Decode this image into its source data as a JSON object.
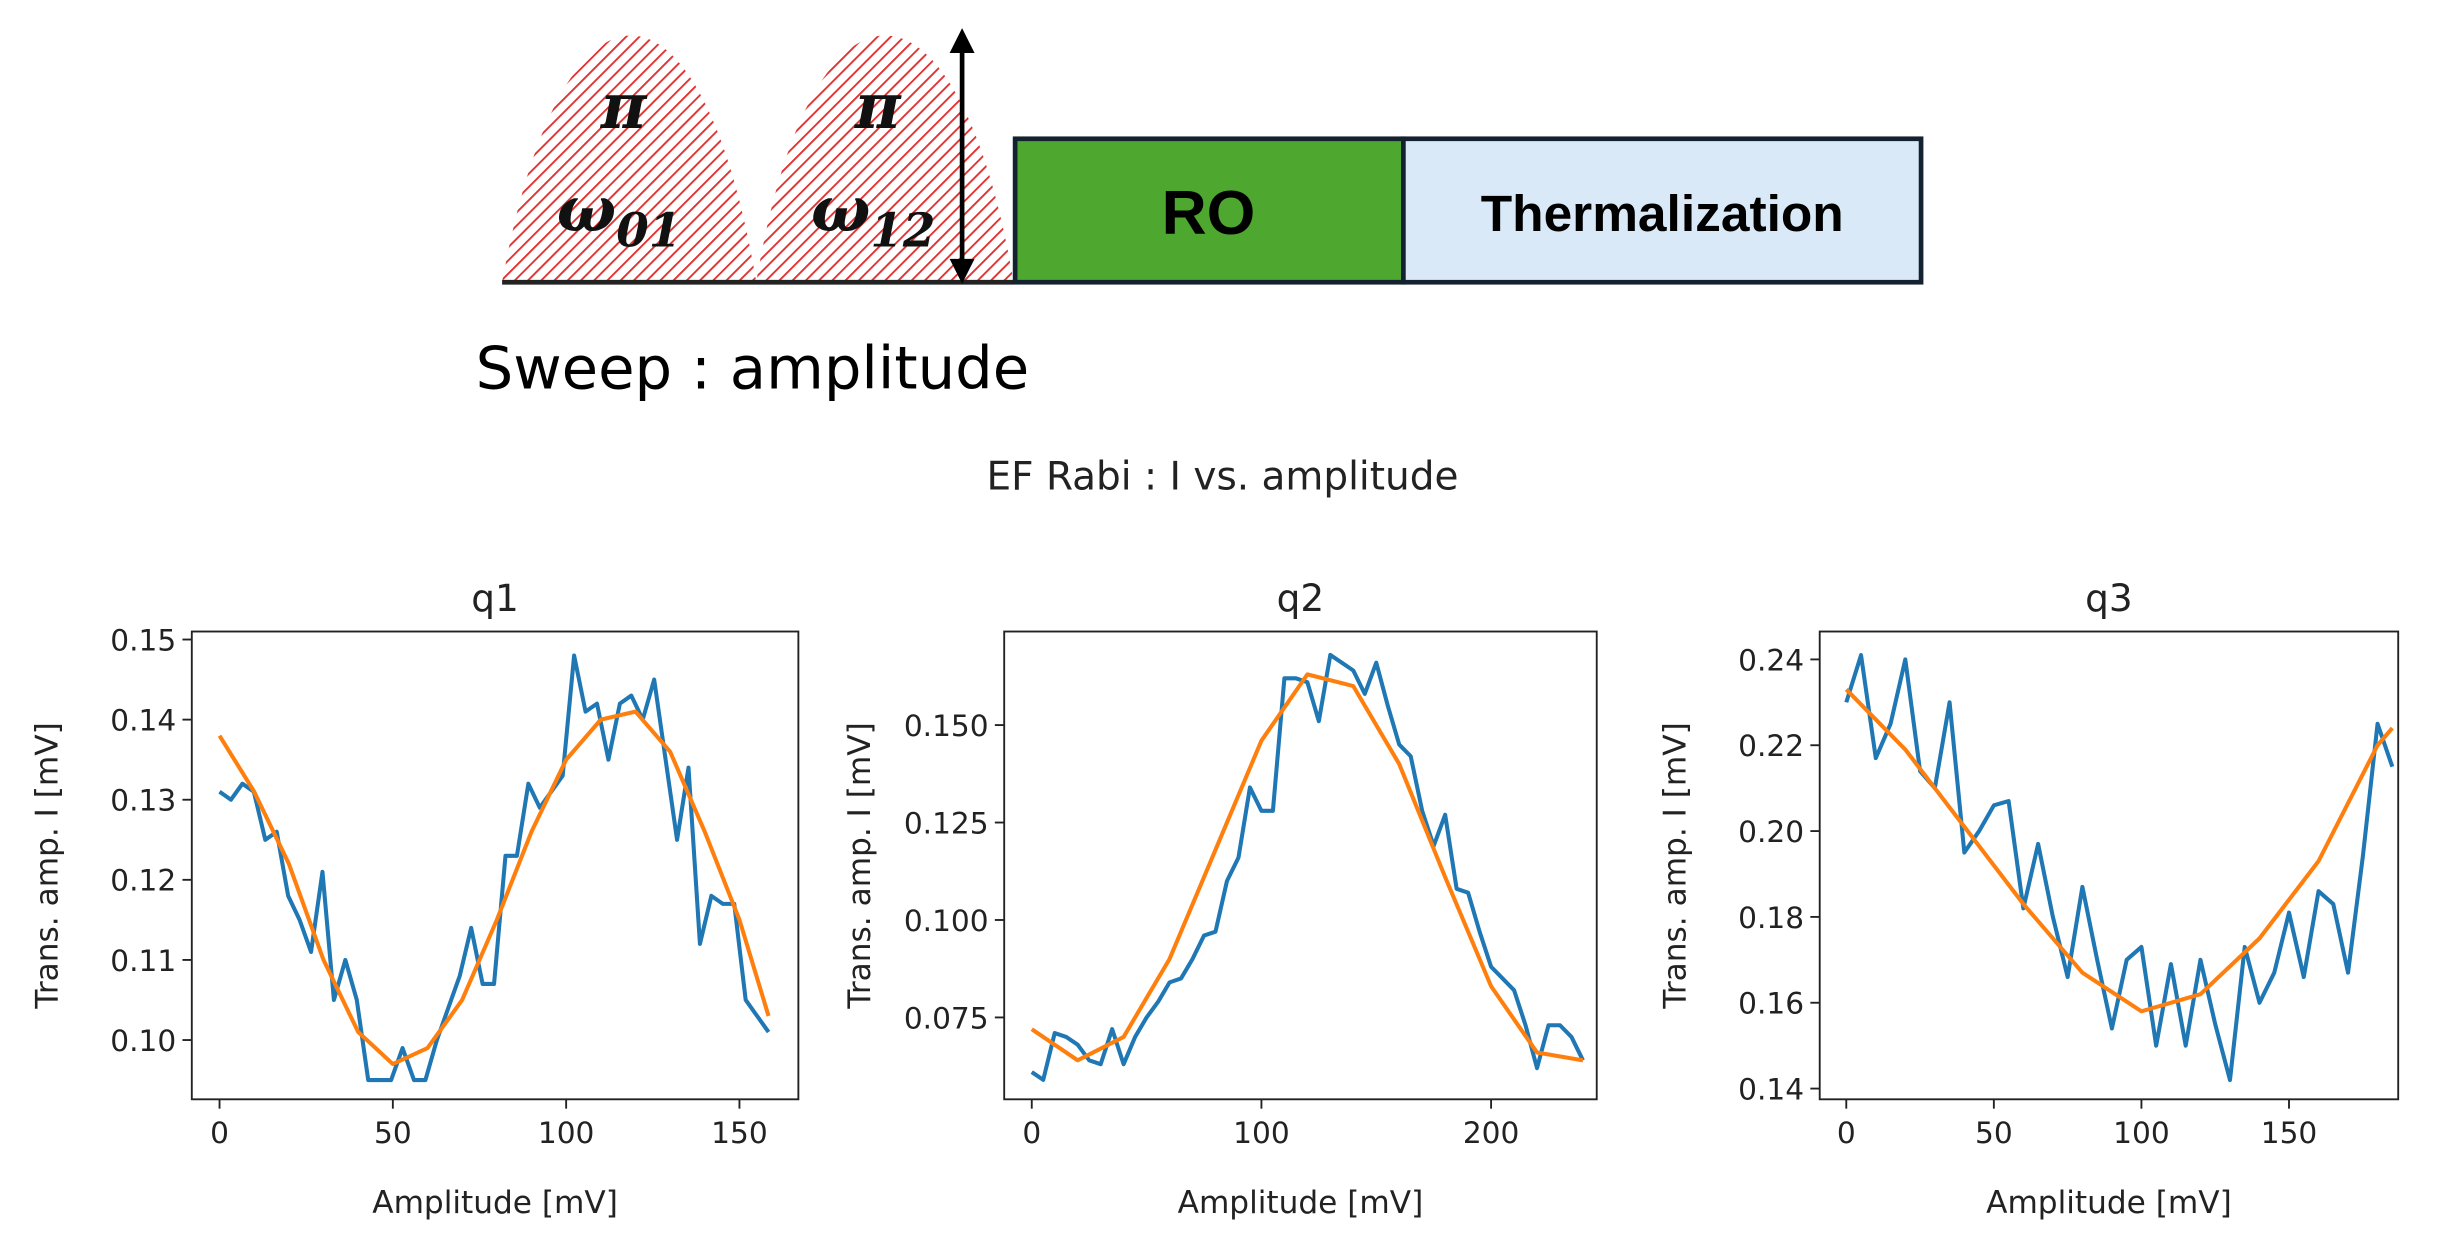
{
  "diagram": {
    "pulses": [
      {
        "label": "π",
        "freq": "ω",
        "sub": "01"
      },
      {
        "label": "π",
        "freq": "ω",
        "sub": "12"
      }
    ],
    "blocks": [
      "RO",
      "Thermalization"
    ],
    "sweep": "Sweep : amplitude"
  },
  "suptitle": "EF Rabi : I vs. amplitude",
  "chart_data": [
    {
      "type": "line",
      "title": "q1",
      "x_label": "Amplitude [mV]",
      "y_label": "Trans. amp. I [mV]",
      "xlim": [
        -8,
        167
      ],
      "ylim": [
        0.0926,
        0.151
      ],
      "xticks": [
        0,
        50,
        100,
        150
      ],
      "yticks": [
        {
          "value": 0.1,
          "label": "0.10"
        },
        0.11,
        0.12,
        0.13,
        0.14,
        0.15
      ],
      "series": [
        {
          "color": "#1f77b4",
          "x": [
            0,
            3.3,
            6.6,
            9.9,
            13.2,
            16.5,
            19.8,
            23.1,
            26.4,
            29.7,
            33,
            36.3,
            39.6,
            42.9,
            46.2,
            49.5,
            52.8,
            56.1,
            59.4,
            62.7,
            66,
            69.3,
            72.6,
            75.9,
            79.2,
            82.5,
            85.8,
            89.1,
            92.4,
            95.7,
            99,
            102.3,
            105.6,
            108.9,
            112.2,
            115.5,
            118.8,
            122.1,
            125.4,
            128.7,
            132,
            135.3,
            138.6,
            141.9,
            145.2,
            148.5,
            151.8,
            155.1,
            158.4
          ],
          "values": [
            0.131,
            0.13,
            0.132,
            0.131,
            0.125,
            0.126,
            0.118,
            0.115,
            0.111,
            0.121,
            0.105,
            0.11,
            0.105,
            0.095,
            0.095,
            0.095,
            0.099,
            0.095,
            0.095,
            0.1,
            0.104,
            0.108,
            0.114,
            0.107,
            0.107,
            0.123,
            0.123,
            0.132,
            0.129,
            0.131,
            0.133,
            0.148,
            0.141,
            0.142,
            0.135,
            0.142,
            0.143,
            0.14,
            0.145,
            0.135,
            0.125,
            0.134,
            0.112,
            0.118,
            0.117,
            0.117,
            0.105,
            0.103,
            0.101
          ]
        },
        {
          "color": "#ff7f0e",
          "x": [
            0,
            10,
            20,
            30,
            40,
            50,
            60,
            70,
            80,
            90,
            100,
            110,
            120,
            130,
            140,
            150,
            158.4
          ],
          "values": [
            0.138,
            0.131,
            0.122,
            0.11,
            0.101,
            0.097,
            0.099,
            0.105,
            0.115,
            0.126,
            0.135,
            0.14,
            0.141,
            0.136,
            0.126,
            0.115,
            0.103
          ]
        }
      ]
    },
    {
      "type": "line",
      "title": "q2",
      "x_label": "Amplitude [mV]",
      "y_label": "Trans. amp. I [mV]",
      "xlim": [
        -12,
        246
      ],
      "ylim": [
        0.054,
        0.174
      ],
      "xticks": [
        0,
        100,
        200
      ],
      "yticks": [
        0.075,
        {
          "value": 0.1,
          "label": "0.100"
        },
        0.125,
        {
          "value": 0.15,
          "label": "0.150"
        }
      ],
      "series": [
        {
          "color": "#1f77b4",
          "x": [
            0,
            5,
            10,
            15,
            20,
            25,
            30,
            35,
            40,
            45,
            50,
            55,
            60,
            65,
            70,
            75,
            80,
            85,
            90,
            95,
            100,
            105,
            110,
            115,
            120,
            125,
            130,
            135,
            140,
            145,
            150,
            155,
            160,
            165,
            170,
            175,
            180,
            185,
            190,
            195,
            200,
            205,
            210,
            215,
            220,
            225,
            230,
            235,
            240
          ],
          "values": [
            0.061,
            0.059,
            0.071,
            0.07,
            0.068,
            0.064,
            0.063,
            0.072,
            0.063,
            0.07,
            0.075,
            0.079,
            0.084,
            0.085,
            0.09,
            0.096,
            0.097,
            0.11,
            0.116,
            0.134,
            0.128,
            0.128,
            0.162,
            0.162,
            0.161,
            0.151,
            0.168,
            0.166,
            0.164,
            0.158,
            0.166,
            0.155,
            0.145,
            0.142,
            0.128,
            0.119,
            0.127,
            0.108,
            0.107,
            0.097,
            0.088,
            0.085,
            0.082,
            0.073,
            0.062,
            0.073,
            0.073,
            0.07,
            0.064
          ]
        },
        {
          "color": "#ff7f0e",
          "x": [
            0,
            20,
            40,
            60,
            80,
            100,
            120,
            140,
            160,
            180,
            200,
            220,
            240
          ],
          "values": [
            0.072,
            0.064,
            0.07,
            0.09,
            0.118,
            0.146,
            0.163,
            0.16,
            0.14,
            0.111,
            0.083,
            0.066,
            0.064
          ]
        }
      ]
    },
    {
      "type": "line",
      "title": "q3",
      "x_label": "Amplitude [mV]",
      "y_label": "Trans. amp. I [mV]",
      "xlim": [
        -9,
        187
      ],
      "ylim": [
        0.1375,
        0.2465
      ],
      "xticks": [
        0,
        50,
        100,
        150
      ],
      "yticks": [
        0.14,
        0.16,
        0.18,
        {
          "value": 0.2,
          "label": "0.20"
        },
        0.22,
        0.24
      ],
      "series": [
        {
          "color": "#1f77b4",
          "x": [
            0,
            5,
            10,
            15,
            20,
            25,
            30,
            35,
            40,
            45,
            50,
            55,
            60,
            65,
            70,
            75,
            80,
            85,
            90,
            95,
            100,
            105,
            110,
            115,
            120,
            125,
            130,
            135,
            140,
            145,
            150,
            155,
            160,
            165,
            170,
            175,
            180,
            185
          ],
          "values": [
            0.23,
            0.241,
            0.217,
            0.225,
            0.24,
            0.214,
            0.21,
            0.23,
            0.195,
            0.2,
            0.206,
            0.207,
            0.182,
            0.197,
            0.18,
            0.166,
            0.187,
            0.17,
            0.154,
            0.17,
            0.173,
            0.15,
            0.169,
            0.15,
            0.17,
            0.155,
            0.142,
            0.173,
            0.16,
            0.167,
            0.181,
            0.166,
            0.186,
            0.183,
            0.167,
            0.194,
            0.225,
            0.215
          ]
        },
        {
          "color": "#ff7f0e",
          "x": [
            0,
            20,
            40,
            60,
            80,
            100,
            120,
            140,
            160,
            180,
            185
          ],
          "values": [
            0.233,
            0.219,
            0.201,
            0.183,
            0.167,
            0.158,
            0.162,
            0.175,
            0.193,
            0.22,
            0.224
          ]
        }
      ]
    }
  ]
}
